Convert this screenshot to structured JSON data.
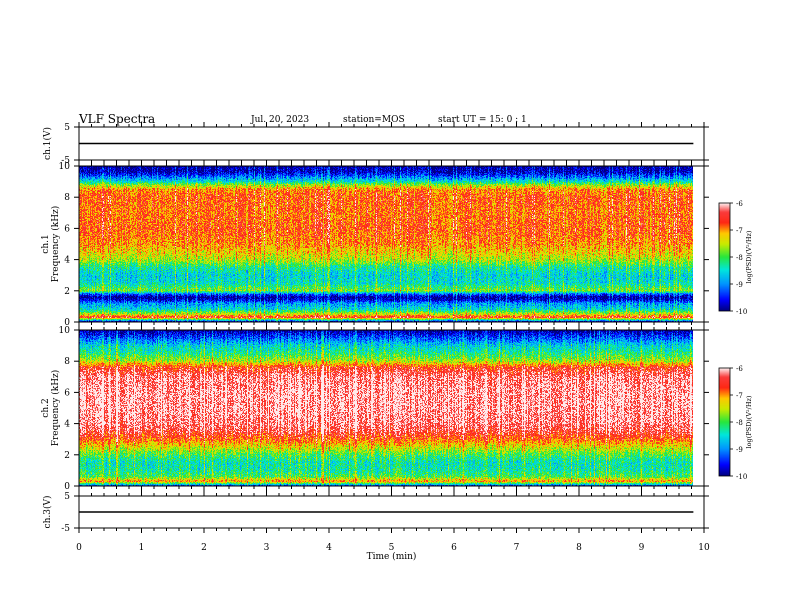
{
  "header": {
    "title": "VLF Spectra",
    "date": "Jul. 20, 2023",
    "station": "station=MOS",
    "start_label": "start UT =  15: 0  : 1"
  },
  "chart_data": [
    {
      "type": "line",
      "panel": "ch1-waveform",
      "ylabel": "ch.1(V)",
      "ylim": [
        -5,
        5
      ],
      "yticks": [
        5,
        -5
      ],
      "xlim": [
        0,
        10
      ],
      "series": [
        {
          "x": [
            0,
            9.83
          ],
          "values": [
            0,
            0
          ]
        }
      ]
    },
    {
      "type": "heatmap",
      "panel": "ch1-spectrogram",
      "ylabel": "ch.1",
      "ylabel2": "Frequency (kHz)",
      "ylim": [
        0,
        10
      ],
      "yticks": [
        0,
        2,
        4,
        6,
        8,
        10
      ],
      "xlim": [
        0,
        10
      ],
      "data_xmax": 9.83,
      "colorbar": {
        "label": "log(PSD)(V²/Hz)",
        "range": [
          -10,
          -6
        ],
        "ticks": [
          -6,
          -7,
          -8,
          -9,
          -10
        ]
      },
      "profile": {
        "freq_khz": [
          0.0,
          0.3,
          0.5,
          0.8,
          1.0,
          1.2,
          1.4,
          1.6,
          1.8,
          2.0,
          2.5,
          3.0,
          3.5,
          4.0,
          5.0,
          6.0,
          7.0,
          8.0,
          8.5,
          8.8,
          9.0,
          9.3,
          9.6,
          10.0
        ],
        "log_psd": [
          -10.0,
          -6.5,
          -7.5,
          -8.5,
          -8.8,
          -9.0,
          -9.7,
          -10.0,
          -9.2,
          -7.8,
          -8.5,
          -8.6,
          -8.3,
          -7.6,
          -7.0,
          -6.8,
          -6.9,
          -6.8,
          -7.0,
          -7.8,
          -8.5,
          -9.2,
          -9.8,
          -10.0
        ]
      }
    },
    {
      "type": "heatmap",
      "panel": "ch2-spectrogram",
      "ylabel": "ch.2",
      "ylabel2": "Frequency (kHz)",
      "ylim": [
        0,
        10
      ],
      "yticks": [
        0,
        2,
        4,
        6,
        8,
        10
      ],
      "xlim": [
        0,
        10
      ],
      "data_xmax": 9.83,
      "colorbar": {
        "label": "log(PSD)(V²/Hz)",
        "range": [
          -10,
          -6
        ],
        "ticks": [
          -6,
          -7,
          -8,
          -9,
          -10
        ]
      },
      "profile": {
        "freq_khz": [
          0.0,
          0.3,
          0.6,
          1.0,
          1.5,
          2.0,
          2.5,
          3.0,
          3.5,
          4.0,
          5.0,
          6.0,
          7.0,
          7.6,
          8.0,
          8.5,
          9.0,
          9.5,
          10.0
        ],
        "log_psd": [
          -9.5,
          -7.0,
          -8.0,
          -8.3,
          -8.4,
          -8.0,
          -7.4,
          -6.8,
          -6.4,
          -6.2,
          -6.1,
          -6.1,
          -6.2,
          -6.6,
          -7.6,
          -8.2,
          -8.6,
          -9.3,
          -10.0
        ]
      }
    },
    {
      "type": "line",
      "panel": "ch3-waveform",
      "ylabel": "ch.3(V)",
      "ylim": [
        -5,
        5
      ],
      "yticks": [
        5,
        -5
      ],
      "xlim": [
        0,
        10
      ],
      "series": [
        {
          "x": [
            0,
            9.83
          ],
          "values": [
            0,
            0
          ]
        }
      ]
    }
  ],
  "x_axis": {
    "label": "Time (min)",
    "ticks": [
      "0",
      "1",
      "2",
      "3",
      "4",
      "5",
      "6",
      "7",
      "8",
      "9",
      "10"
    ]
  }
}
